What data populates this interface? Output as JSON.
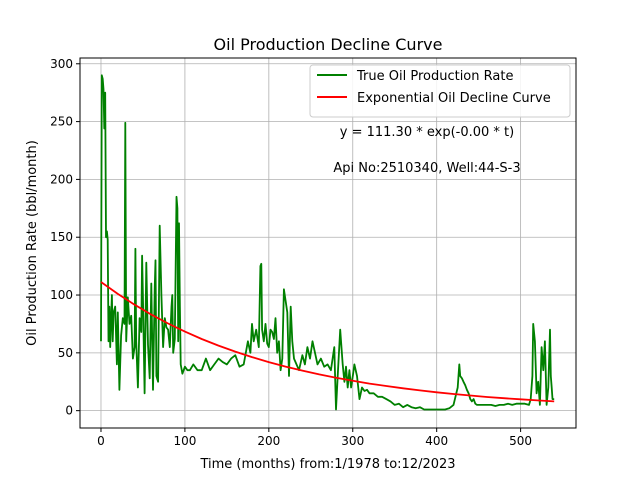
{
  "chart_data": {
    "type": "line",
    "title": "Oil Production Decline Curve",
    "xlabel": "Time (months) from:1/1978 to:12/2023",
    "ylabel": "Oil Production Rate (bbl/month)",
    "xlim": [
      -25,
      566
    ],
    "ylim": [
      -15,
      305
    ],
    "xticks": [
      0,
      100,
      200,
      300,
      400,
      500
    ],
    "yticks": [
      0,
      50,
      100,
      150,
      200,
      250,
      300
    ],
    "grid": true,
    "legend_position": "top-right",
    "annotations": [
      "y = 111.30 * exp(-0.00 * t)",
      "Api No:2510340, Well:44-S-3"
    ],
    "series": [
      {
        "name": "True Oil Production Rate",
        "color": "#008000",
        "points": [
          [
            0,
            60
          ],
          [
            1,
            290
          ],
          [
            2,
            287
          ],
          [
            3,
            278
          ],
          [
            4,
            244
          ],
          [
            5,
            275
          ],
          [
            6,
            150
          ],
          [
            7,
            155
          ],
          [
            8,
            148
          ],
          [
            9,
            60
          ],
          [
            10,
            90
          ],
          [
            11,
            55
          ],
          [
            12,
            80
          ],
          [
            13,
            100
          ],
          [
            14,
            60
          ],
          [
            15,
            85
          ],
          [
            17,
            90
          ],
          [
            19,
            40
          ],
          [
            20,
            85
          ],
          [
            22,
            18
          ],
          [
            24,
            65
          ],
          [
            26,
            80
          ],
          [
            28,
            75
          ],
          [
            29,
            249
          ],
          [
            30,
            60
          ],
          [
            32,
            98
          ],
          [
            34,
            75
          ],
          [
            36,
            82
          ],
          [
            38,
            45
          ],
          [
            40,
            55
          ],
          [
            41,
            140
          ],
          [
            42,
            60
          ],
          [
            44,
            20
          ],
          [
            46,
            80
          ],
          [
            48,
            68
          ],
          [
            49,
            134
          ],
          [
            50,
            100
          ],
          [
            52,
            15
          ],
          [
            54,
            128
          ],
          [
            56,
            57
          ],
          [
            58,
            28
          ],
          [
            60,
            110
          ],
          [
            62,
            18
          ],
          [
            64,
            105
          ],
          [
            65,
            130
          ],
          [
            66,
            30
          ],
          [
            68,
            25
          ],
          [
            70,
            160
          ],
          [
            72,
            100
          ],
          [
            74,
            55
          ],
          [
            76,
            80
          ],
          [
            78,
            72
          ],
          [
            80,
            70
          ],
          [
            82,
            55
          ],
          [
            84,
            90
          ],
          [
            85,
            100
          ],
          [
            86,
            50
          ],
          [
            88,
            62
          ],
          [
            90,
            185
          ],
          [
            91,
            175
          ],
          [
            92,
            60
          ],
          [
            93,
            162
          ],
          [
            94,
            90
          ],
          [
            95,
            40
          ],
          [
            97,
            32
          ],
          [
            100,
            38
          ],
          [
            103,
            35
          ],
          [
            106,
            35
          ],
          [
            110,
            40
          ],
          [
            115,
            35
          ],
          [
            120,
            35
          ],
          [
            125,
            45
          ],
          [
            130,
            35
          ],
          [
            135,
            40
          ],
          [
            140,
            45
          ],
          [
            145,
            42
          ],
          [
            150,
            40
          ],
          [
            155,
            45
          ],
          [
            160,
            48
          ],
          [
            165,
            38
          ],
          [
            170,
            40
          ],
          [
            175,
            60
          ],
          [
            178,
            50
          ],
          [
            180,
            75
          ],
          [
            182,
            60
          ],
          [
            185,
            70
          ],
          [
            188,
            55
          ],
          [
            190,
            125
          ],
          [
            191,
            127
          ],
          [
            192,
            70
          ],
          [
            194,
            60
          ],
          [
            196,
            75
          ],
          [
            198,
            58
          ],
          [
            200,
            55
          ],
          [
            202,
            70
          ],
          [
            204,
            68
          ],
          [
            206,
            62
          ],
          [
            208,
            80
          ],
          [
            210,
            50
          ],
          [
            212,
            60
          ],
          [
            214,
            35
          ],
          [
            216,
            45
          ],
          [
            218,
            105
          ],
          [
            220,
            95
          ],
          [
            222,
            85
          ],
          [
            224,
            30
          ],
          [
            226,
            90
          ],
          [
            228,
            60
          ],
          [
            230,
            45
          ],
          [
            233,
            40
          ],
          [
            236,
            35
          ],
          [
            240,
            48
          ],
          [
            243,
            40
          ],
          [
            246,
            55
          ],
          [
            249,
            45
          ],
          [
            252,
            60
          ],
          [
            255,
            50
          ],
          [
            258,
            40
          ],
          [
            262,
            45
          ],
          [
            266,
            38
          ],
          [
            270,
            40
          ],
          [
            274,
            35
          ],
          [
            278,
            55
          ],
          [
            280,
            1
          ],
          [
            282,
            30
          ],
          [
            285,
            70
          ],
          [
            288,
            40
          ],
          [
            290,
            25
          ],
          [
            292,
            38
          ],
          [
            294,
            20
          ],
          [
            296,
            35
          ],
          [
            298,
            20
          ],
          [
            300,
            30
          ],
          [
            302,
            40
          ],
          [
            305,
            30
          ],
          [
            308,
            10
          ],
          [
            311,
            20
          ],
          [
            314,
            17
          ],
          [
            317,
            18
          ],
          [
            320,
            15
          ],
          [
            325,
            15
          ],
          [
            330,
            12
          ],
          [
            335,
            12
          ],
          [
            340,
            10
          ],
          [
            345,
            8
          ],
          [
            350,
            5
          ],
          [
            355,
            6
          ],
          [
            360,
            3
          ],
          [
            365,
            5
          ],
          [
            370,
            3
          ],
          [
            375,
            2
          ],
          [
            380,
            3
          ],
          [
            385,
            1
          ],
          [
            390,
            1
          ],
          [
            395,
            1
          ],
          [
            400,
            1
          ],
          [
            405,
            1
          ],
          [
            410,
            1
          ],
          [
            415,
            2
          ],
          [
            420,
            5
          ],
          [
            425,
            20
          ],
          [
            427,
            40
          ],
          [
            428,
            30
          ],
          [
            430,
            28
          ],
          [
            432,
            25
          ],
          [
            434,
            22
          ],
          [
            436,
            18
          ],
          [
            438,
            15
          ],
          [
            440,
            10
          ],
          [
            442,
            8
          ],
          [
            444,
            10
          ],
          [
            446,
            6
          ],
          [
            448,
            5
          ],
          [
            450,
            5
          ],
          [
            455,
            5
          ],
          [
            460,
            5
          ],
          [
            465,
            5
          ],
          [
            470,
            4
          ],
          [
            475,
            5
          ],
          [
            480,
            5
          ],
          [
            485,
            6
          ],
          [
            490,
            5
          ],
          [
            495,
            6
          ],
          [
            500,
            6
          ],
          [
            505,
            6
          ],
          [
            510,
            5
          ],
          [
            512,
            10
          ],
          [
            514,
            30
          ],
          [
            515,
            75
          ],
          [
            517,
            60
          ],
          [
            519,
            15
          ],
          [
            521,
            25
          ],
          [
            523,
            5
          ],
          [
            525,
            55
          ],
          [
            527,
            35
          ],
          [
            529,
            60
          ],
          [
            531,
            5
          ],
          [
            533,
            20
          ],
          [
            535,
            70
          ],
          [
            536,
            30
          ],
          [
            537,
            20
          ],
          [
            538,
            10
          ],
          [
            540,
            10
          ]
        ]
      },
      {
        "name": "Exponential Oil Decline Curve",
        "color": "#ff0000",
        "function": "y = 111.30 * exp(-0.0048 * t)",
        "points": [
          [
            0,
            111.3
          ],
          [
            20,
            101.0
          ],
          [
            40,
            91.6
          ],
          [
            60,
            83.1
          ],
          [
            80,
            75.4
          ],
          [
            100,
            68.4
          ],
          [
            120,
            62.0
          ],
          [
            140,
            56.3
          ],
          [
            160,
            51.1
          ],
          [
            180,
            46.3
          ],
          [
            200,
            42.0
          ],
          [
            220,
            38.1
          ],
          [
            240,
            34.6
          ],
          [
            260,
            31.4
          ],
          [
            280,
            28.5
          ],
          [
            300,
            25.8
          ],
          [
            320,
            23.4
          ],
          [
            340,
            21.3
          ],
          [
            360,
            19.3
          ],
          [
            380,
            17.5
          ],
          [
            400,
            15.9
          ],
          [
            420,
            14.4
          ],
          [
            440,
            13.1
          ],
          [
            460,
            11.8
          ],
          [
            480,
            10.8
          ],
          [
            500,
            9.8
          ],
          [
            520,
            8.9
          ],
          [
            540,
            8.0
          ]
        ]
      }
    ]
  }
}
